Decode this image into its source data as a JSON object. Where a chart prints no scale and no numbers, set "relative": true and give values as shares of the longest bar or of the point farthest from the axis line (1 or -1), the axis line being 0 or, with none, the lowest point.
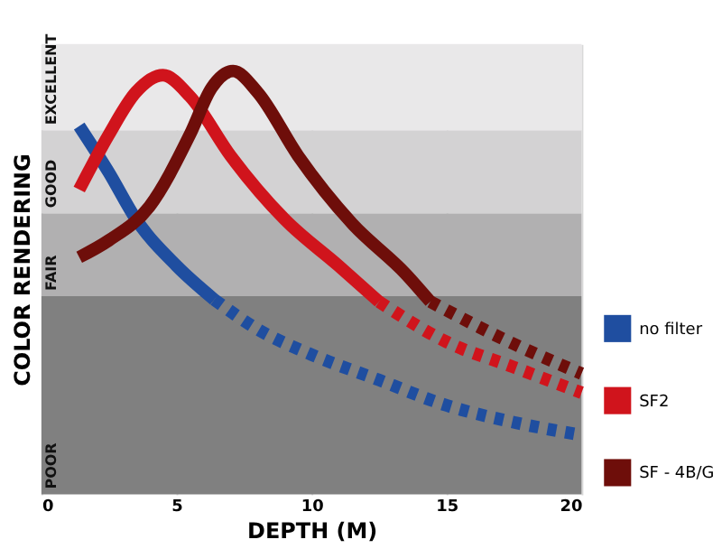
{
  "chart_data": {
    "type": "line",
    "relative": true,
    "xlabel": "DEPTH (M)",
    "ylabel": "COLOR RENDERING",
    "xlim": [
      0,
      20
    ],
    "xticks": [
      0,
      5,
      10,
      15,
      20
    ],
    "grid": "x",
    "tick_labels": "x",
    "legend": "bottom right",
    "marker": "none",
    "bands": [
      {
        "axis": "y",
        "from": 0,
        "to": 0.468,
        "label": "POOR",
        "color": "#808080"
      },
      {
        "axis": "y",
        "from": 0.468,
        "to": 0.664,
        "label": "FAIR",
        "color": "#b1b0b1"
      },
      {
        "axis": "y",
        "from": 0.664,
        "to": 0.86,
        "label": "GOOD",
        "color": "#d3d2d3"
      },
      {
        "axis": "y",
        "from": 0.86,
        "to": 1.064,
        "label": "EXCELLENT",
        "color": "#e9e8e9"
      }
    ],
    "series": [
      {
        "name": "no filter",
        "color": "#1f4ea0",
        "line_style": "solid",
        "x": [
          1.4,
          2.5,
          3.5,
          5,
          6.4
        ],
        "values": [
          0.87,
          0.76,
          0.65,
          0.54,
          0.46
        ]
      },
      {
        "color": "#1f4ea0",
        "line_style": "dotted",
        "x": [
          6.4,
          8,
          10,
          12.5,
          15,
          17.5,
          20
        ],
        "values": [
          0.46,
          0.39,
          0.33,
          0.27,
          0.21,
          0.17,
          0.14
        ]
      },
      {
        "name": "SF2",
        "color": "#d0141c",
        "line_style": "solid",
        "x": [
          1.4,
          2.5,
          3.5,
          4.5,
          5.5,
          7,
          9,
          11,
          12.5
        ],
        "values": [
          0.72,
          0.85,
          0.95,
          0.99,
          0.94,
          0.8,
          0.65,
          0.54,
          0.455
        ]
      },
      {
        "color": "#d0141c",
        "line_style": "dotted",
        "x": [
          12.5,
          15,
          17.5,
          20
        ],
        "values": [
          0.455,
          0.36,
          0.3,
          0.24
        ]
      },
      {
        "name": "SF - 4B/G",
        "color": "#6e0e0a",
        "line_style": "solid",
        "x": [
          1.4,
          2.5,
          4,
          5.5,
          6.3,
          7.1,
          8,
          9.5,
          11.5,
          13.5,
          14.4
        ],
        "values": [
          0.56,
          0.6,
          0.68,
          0.85,
          0.96,
          1.0,
          0.95,
          0.8,
          0.64,
          0.52,
          0.455
        ]
      },
      {
        "color": "#6e0e0a",
        "line_style": "dotted",
        "x": [
          14.4,
          17,
          20
        ],
        "values": [
          0.455,
          0.37,
          0.285
        ]
      }
    ]
  }
}
